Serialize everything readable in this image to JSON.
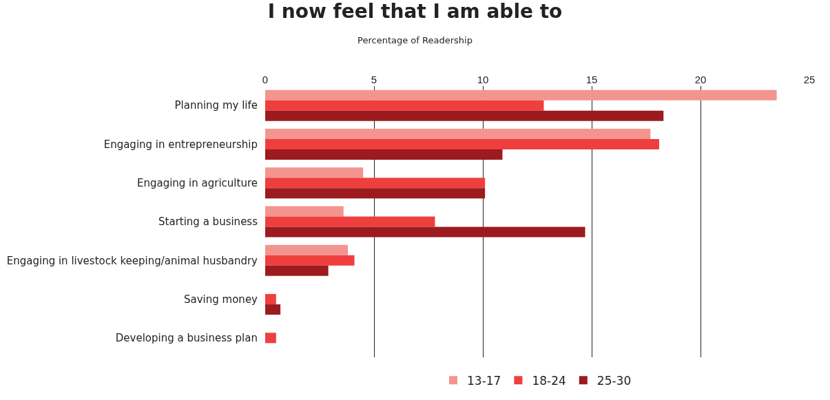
{
  "chart_data": {
    "type": "bar",
    "orientation": "horizontal",
    "title": "I now feel that I am able to",
    "subtitle": "Percentage of Readership",
    "categories": [
      "Planning my life",
      "Engaging in entrepreneurship",
      "Engaging in agriculture",
      "Starting a business",
      "Engaging in livestock keeping/animal husbandry",
      "Saving money",
      "Developing a business plan"
    ],
    "series": [
      {
        "name": "13-17",
        "color": "#f4948f",
        "values": [
          23.5,
          17.7,
          4.5,
          3.6,
          3.8,
          null,
          null
        ]
      },
      {
        "name": "18-24",
        "color": "#ef3e3e",
        "values": [
          12.8,
          18.1,
          10.1,
          7.8,
          4.1,
          0.5,
          0.5
        ]
      },
      {
        "name": "25-30",
        "color": "#9b1b1f",
        "values": [
          18.3,
          10.9,
          10.1,
          14.7,
          2.9,
          0.7,
          null
        ]
      }
    ],
    "xlim": [
      0,
      25
    ],
    "xticks": [
      0,
      5,
      10,
      15,
      20,
      25
    ],
    "grid": "x",
    "legend": "bottom"
  }
}
